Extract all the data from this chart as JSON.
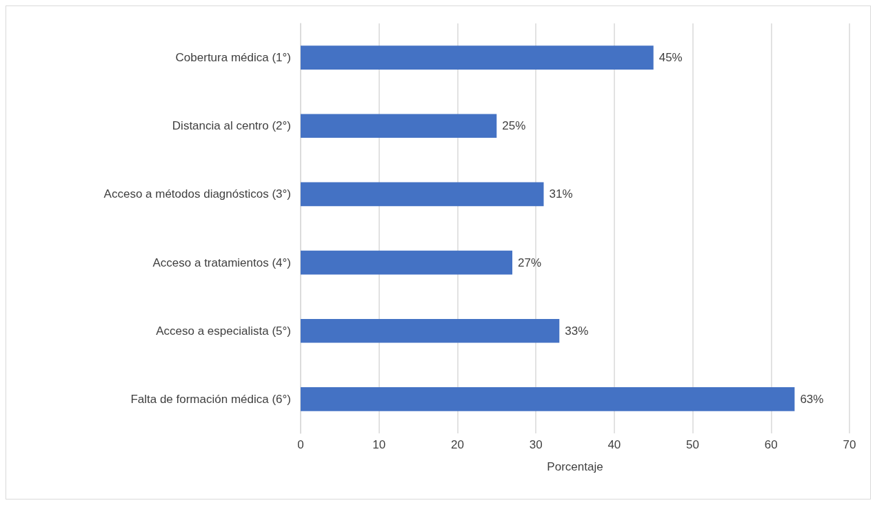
{
  "chart_data": {
    "type": "bar",
    "orientation": "horizontal",
    "categories": [
      "Cobertura médica (1°)",
      "Distancia al centro (2°)",
      "Acceso a métodos diagnósticos (3°)",
      "Acceso a tratamientos (4°)",
      "Acceso a especialista (5°)",
      "Falta de formación médica (6°)"
    ],
    "values": [
      45,
      25,
      31,
      27,
      33,
      63
    ],
    "value_labels": [
      "45%",
      "25%",
      "31%",
      "27%",
      "33%",
      "63%"
    ],
    "color": "#4472c4",
    "xlabel": "Porcentaje",
    "xlim": [
      0,
      70
    ],
    "xticks": [
      0,
      10,
      20,
      30,
      40,
      50,
      60,
      70
    ],
    "grid": "x"
  }
}
